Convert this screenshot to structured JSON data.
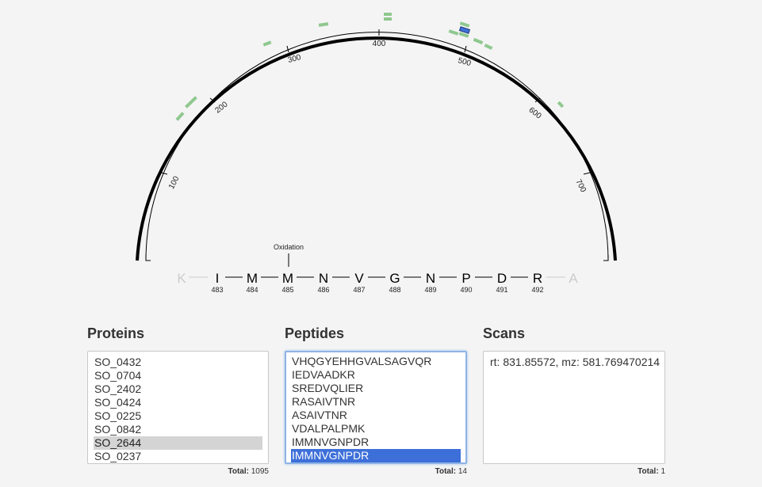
{
  "viz": {
    "axis_ticks": [
      "100",
      "200",
      "300",
      "400",
      "500",
      "600",
      "700"
    ],
    "modification_label": "Oxidation",
    "sequence": [
      {
        "letter": "K",
        "pos": "",
        "context": true
      },
      {
        "letter": "I",
        "pos": "483",
        "context": false
      },
      {
        "letter": "M",
        "pos": "484",
        "context": false
      },
      {
        "letter": "M",
        "pos": "485",
        "context": false
      },
      {
        "letter": "N",
        "pos": "486",
        "context": false
      },
      {
        "letter": "V",
        "pos": "487",
        "context": false
      },
      {
        "letter": "G",
        "pos": "488",
        "context": false
      },
      {
        "letter": "N",
        "pos": "489",
        "context": false
      },
      {
        "letter": "P",
        "pos": "490",
        "context": false
      },
      {
        "letter": "D",
        "pos": "491",
        "context": false
      },
      {
        "letter": "R",
        "pos": "492",
        "context": false
      },
      {
        "letter": "A",
        "pos": "",
        "context": true
      }
    ],
    "colors": {
      "peptide": "#8fc88f",
      "selected_peptide": "#3d6fd9",
      "arc": "#000000",
      "context_letter": "#cccccc"
    }
  },
  "proteins": {
    "title": "Proteins",
    "items": [
      "SO_0432",
      "SO_0704",
      "SO_2402",
      "SO_0424",
      "SO_0225",
      "SO_0842",
      "SO_2644",
      "SO_0237"
    ],
    "selected_index": 6,
    "total_label": "Total:",
    "total_value": "1095"
  },
  "peptides": {
    "title": "Peptides",
    "items": [
      "VHQGYEHHGVALSAGVQR",
      "IEDVAADKR",
      "SREDVQLIER",
      "RASAIVTNR",
      "ASAIVTNR",
      "VDALPALPMK",
      "IMMNVGNPDR",
      "IMMNVGNPDR"
    ],
    "selected_index": 7,
    "total_label": "Total:",
    "total_value": "14"
  },
  "scans": {
    "title": "Scans",
    "items": [
      "rt: 831.85572, mz: 581.769470214"
    ],
    "total_label": "Total:",
    "total_value": "1"
  }
}
